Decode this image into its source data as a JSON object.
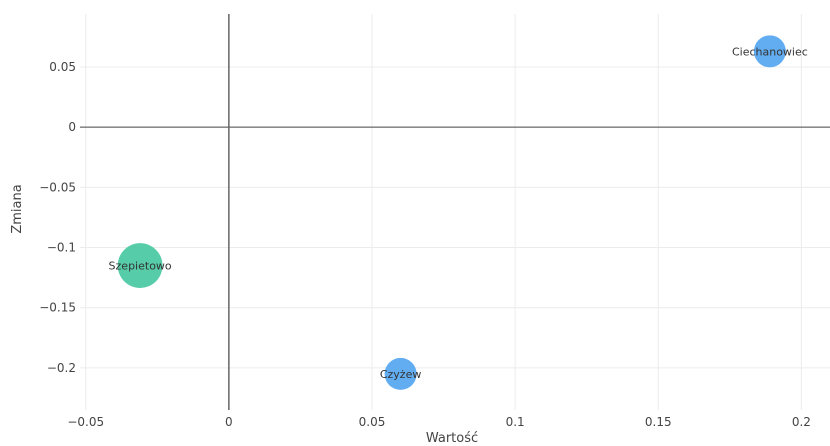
{
  "chart_data": {
    "type": "scatter",
    "title": "",
    "xlabel": "Wartość",
    "ylabel": "Zmiana",
    "xlim": [
      -0.052,
      0.21
    ],
    "ylim": [
      -0.235,
      0.094
    ],
    "xticks": [
      {
        "value": -0.05,
        "label": "−0.05"
      },
      {
        "value": 0,
        "label": "0"
      },
      {
        "value": 0.05,
        "label": "0.05"
      },
      {
        "value": 0.1,
        "label": "0.1"
      },
      {
        "value": 0.15,
        "label": "0.15"
      },
      {
        "value": 0.2,
        "label": "0.2"
      }
    ],
    "yticks": [
      {
        "value": 0.05,
        "label": "0.05"
      },
      {
        "value": 0,
        "label": "0"
      },
      {
        "value": -0.05,
        "label": "−0.05"
      },
      {
        "value": -0.1,
        "label": "−0.1"
      },
      {
        "value": -0.15,
        "label": "−0.15"
      },
      {
        "value": -0.2,
        "label": "−0.2"
      }
    ],
    "grid": true,
    "points": [
      {
        "label": "Ciechanowiec",
        "x": 0.189,
        "y": 0.063,
        "size": 1,
        "color": "#5aa9f0"
      },
      {
        "label": "Szepietowo",
        "x": -0.031,
        "y": -0.115,
        "size": 1.4,
        "color": "#4dc9a3"
      },
      {
        "label": "Czyżew",
        "x": 0.06,
        "y": -0.205,
        "size": 1,
        "color": "#5aa9f0"
      }
    ]
  }
}
